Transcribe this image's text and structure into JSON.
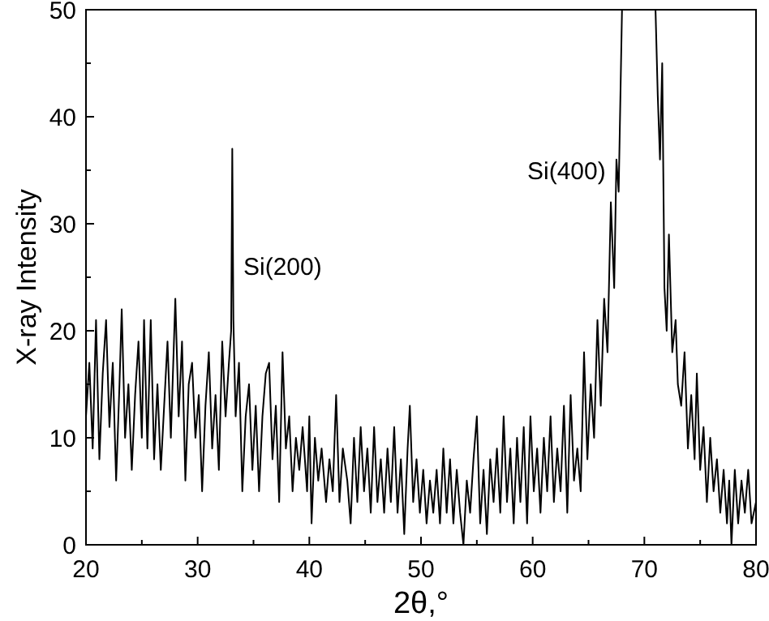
{
  "chart_data": {
    "type": "line",
    "xlabel": "2θ,°",
    "ylabel": "X-ray Intensity",
    "xlim": [
      20,
      80
    ],
    "ylim": [
      0,
      50
    ],
    "xticks": [
      20,
      30,
      40,
      50,
      60,
      70,
      80
    ],
    "yticks": [
      0,
      10,
      20,
      30,
      40,
      50
    ],
    "grid": false,
    "marker": "none",
    "line_style": "solid",
    "annotations": [
      "Si(200)",
      "Si(400)"
    ],
    "x": [
      20,
      20.3,
      20.6,
      20.9,
      21.2,
      21.5,
      21.8,
      22.1,
      22.4,
      22.7,
      23.0,
      23.2,
      23.5,
      23.8,
      24.1,
      24.4,
      24.7,
      25.0,
      25.2,
      25.5,
      25.8,
      26.1,
      26.4,
      26.7,
      27.0,
      27.3,
      27.6,
      28.0,
      28.3,
      28.6,
      28.9,
      29.2,
      29.5,
      29.8,
      30.1,
      30.4,
      30.7,
      31.0,
      31.3,
      31.6,
      31.9,
      32.2,
      32.5,
      32.8,
      33.0,
      33.1,
      33.2,
      33.4,
      33.7,
      34.0,
      34.3,
      34.6,
      34.9,
      35.2,
      35.5,
      35.8,
      36.1,
      36.4,
      36.7,
      37.0,
      37.3,
      37.6,
      37.9,
      38.2,
      38.5,
      38.8,
      39.1,
      39.4,
      39.8,
      40.0,
      40.2,
      40.5,
      40.8,
      41.1,
      41.5,
      41.8,
      42.1,
      42.4,
      42.7,
      43.0,
      43.4,
      43.7,
      44.0,
      44.3,
      44.6,
      44.9,
      45.2,
      45.5,
      45.8,
      46.1,
      46.4,
      46.7,
      47.0,
      47.3,
      47.6,
      47.9,
      48.2,
      48.5,
      48.8,
      49.0,
      49.3,
      49.6,
      49.9,
      50.2,
      50.5,
      50.8,
      51.1,
      51.4,
      51.7,
      52.0,
      52.3,
      52.6,
      52.9,
      53.2,
      53.5,
      53.8,
      54.1,
      54.4,
      54.7,
      55.0,
      55.3,
      55.6,
      55.9,
      56.2,
      56.5,
      56.8,
      57.1,
      57.4,
      57.7,
      58.0,
      58.3,
      58.6,
      58.9,
      59.2,
      59.5,
      59.8,
      60.1,
      60.4,
      60.7,
      61.0,
      61.3,
      61.6,
      61.9,
      62.2,
      62.5,
      62.8,
      63.1,
      63.4,
      63.7,
      64.0,
      64.3,
      64.6,
      64.9,
      65.2,
      65.5,
      65.8,
      66.1,
      66.4,
      66.7,
      67.0,
      67.3,
      67.5,
      67.7,
      68.0,
      69.5,
      71.0,
      71.2,
      71.4,
      71.6,
      71.8,
      72.0,
      72.2,
      72.5,
      72.8,
      73.0,
      73.3,
      73.6,
      73.9,
      74.2,
      74.5,
      74.7,
      75.0,
      75.3,
      75.6,
      75.9,
      76.2,
      76.5,
      76.8,
      77.1,
      77.4,
      77.6,
      77.8,
      78.1,
      78.4,
      78.7,
      79.0,
      79.3,
      79.6,
      80.0
    ],
    "series": [
      {
        "color": "#000000",
        "values": [
          12,
          17,
          9,
          21,
          8,
          16,
          21,
          11,
          17,
          6,
          15,
          22,
          10,
          15,
          7,
          14,
          19,
          10,
          21,
          9,
          21,
          8,
          15,
          7,
          13,
          19,
          10,
          23,
          12,
          19,
          6,
          15,
          17,
          10,
          14,
          5,
          13,
          18,
          9,
          14,
          7,
          19,
          12,
          17,
          20,
          37,
          21,
          12,
          17,
          5,
          12,
          15,
          7,
          13,
          5,
          12,
          16,
          17,
          8,
          13,
          4,
          18,
          9,
          12,
          5,
          10,
          7,
          11,
          5,
          12,
          2,
          10,
          6,
          9,
          4,
          8,
          5,
          14,
          4,
          9,
          6,
          2,
          10,
          4,
          11,
          5,
          9,
          3,
          11,
          4,
          8,
          3,
          9,
          4,
          11,
          3,
          8,
          1,
          9,
          13,
          4,
          8,
          3,
          7,
          2,
          6,
          3,
          7,
          2,
          9,
          3,
          8,
          2,
          7,
          3,
          0,
          6,
          3,
          8,
          12,
          2,
          7,
          1,
          8,
          4,
          9,
          3,
          12,
          4,
          9,
          2,
          10,
          4,
          11,
          2,
          12,
          5,
          9,
          3,
          10,
          5,
          12,
          4,
          9,
          5,
          13,
          3,
          14,
          6,
          9,
          5,
          18,
          8,
          15,
          10,
          21,
          13,
          23,
          18,
          32,
          24,
          36,
          33,
          50,
          null,
          50,
          42,
          36,
          45,
          24,
          20,
          29,
          18,
          21,
          15,
          13,
          18,
          9,
          14,
          8,
          16,
          7,
          11,
          4,
          10,
          5,
          8,
          3,
          7,
          2,
          6,
          0,
          7,
          2,
          6,
          3,
          7,
          2,
          4
        ]
      }
    ]
  }
}
